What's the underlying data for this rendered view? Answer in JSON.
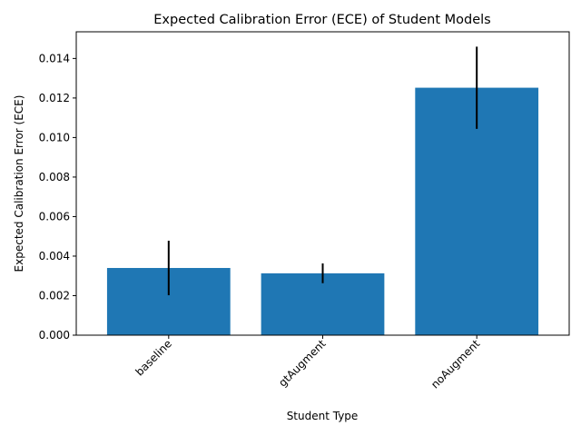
{
  "chart_data": {
    "type": "bar",
    "title": "Expected Calibration Error (ECE) of Student Models",
    "xlabel": "Student Type",
    "ylabel": "Expected Calibration Error (ECE)",
    "categories": [
      "baseline",
      "gtAugment",
      "noAugment"
    ],
    "values": [
      0.0034,
      0.00313,
      0.01252
    ],
    "errors": [
      0.00138,
      0.0005,
      0.00208
    ],
    "ylim": [
      0,
      0.01535
    ],
    "yticks": [
      0.0,
      0.002,
      0.004,
      0.006,
      0.008,
      0.01,
      0.012,
      0.014
    ],
    "ytick_labels": [
      "0.000",
      "0.002",
      "0.004",
      "0.006",
      "0.008",
      "0.010",
      "0.012",
      "0.014"
    ],
    "grid": false,
    "legend": "none",
    "bar_color": "#1f77b4",
    "error_color": "#000000"
  }
}
